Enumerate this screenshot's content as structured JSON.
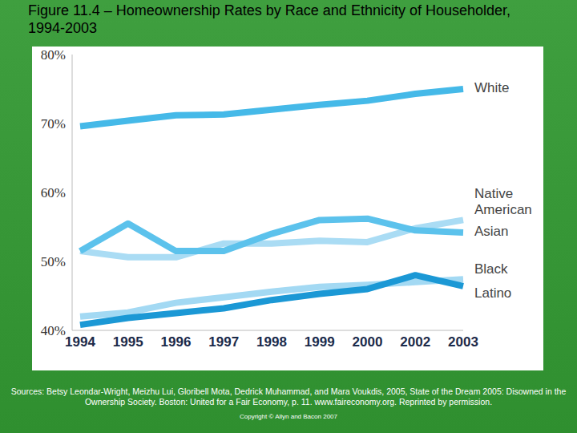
{
  "chart_data": {
    "type": "line",
    "title": "Figure 11.4 – Homeownership Rates by Race and Ethnicity of Householder, 1994-2003",
    "categories": [
      "1994",
      "1995",
      "1996",
      "1997",
      "1998",
      "1999",
      "2000",
      "2002",
      "2003"
    ],
    "series": [
      {
        "name": "White",
        "color": "#45b9e8",
        "values": [
          69.6,
          70.4,
          71.2,
          71.3,
          72.0,
          72.7,
          73.3,
          74.3,
          75.0
        ]
      },
      {
        "name": "Native American",
        "color": "#aadcf4",
        "values": [
          51.5,
          50.6,
          50.6,
          52.6,
          52.6,
          53.0,
          52.8,
          54.8,
          56.0
        ]
      },
      {
        "name": "Asian",
        "color": "#5cc2ec",
        "values": [
          51.5,
          55.5,
          51.5,
          51.5,
          54.0,
          56.0,
          56.2,
          54.5,
          54.2
        ]
      },
      {
        "name": "Black",
        "color": "#a3d9f3",
        "values": [
          42.0,
          42.6,
          44.0,
          44.8,
          45.6,
          46.3,
          46.6,
          47.0,
          47.4
        ]
      },
      {
        "name": "Latino",
        "color": "#1b98d5",
        "values": [
          40.8,
          41.8,
          42.5,
          43.2,
          44.4,
          45.3,
          46.0,
          48.0,
          46.4
        ]
      }
    ],
    "ylim": [
      40,
      80
    ],
    "yticks": [
      {
        "value": 40,
        "label": "40%"
      },
      {
        "value": 50,
        "label": "50%"
      },
      {
        "value": 60,
        "label": "60%"
      },
      {
        "value": 70,
        "label": "70%"
      },
      {
        "value": 80,
        "label": "80%"
      }
    ],
    "grid": false,
    "source": "Sources: Betsy Leondar-Wright, Meizhu Lui, Gloribell Mota, Dedrick Muhammad, and Mara Voukdis, 2005, State of the Dream 2005: Disowned in the Ownership Society. Boston: United for a Fair Economy, p. 11. www.faireconomy.org. Reprinted by permission.",
    "copyright": "Copyright © Allyn and Bacon 2007"
  }
}
